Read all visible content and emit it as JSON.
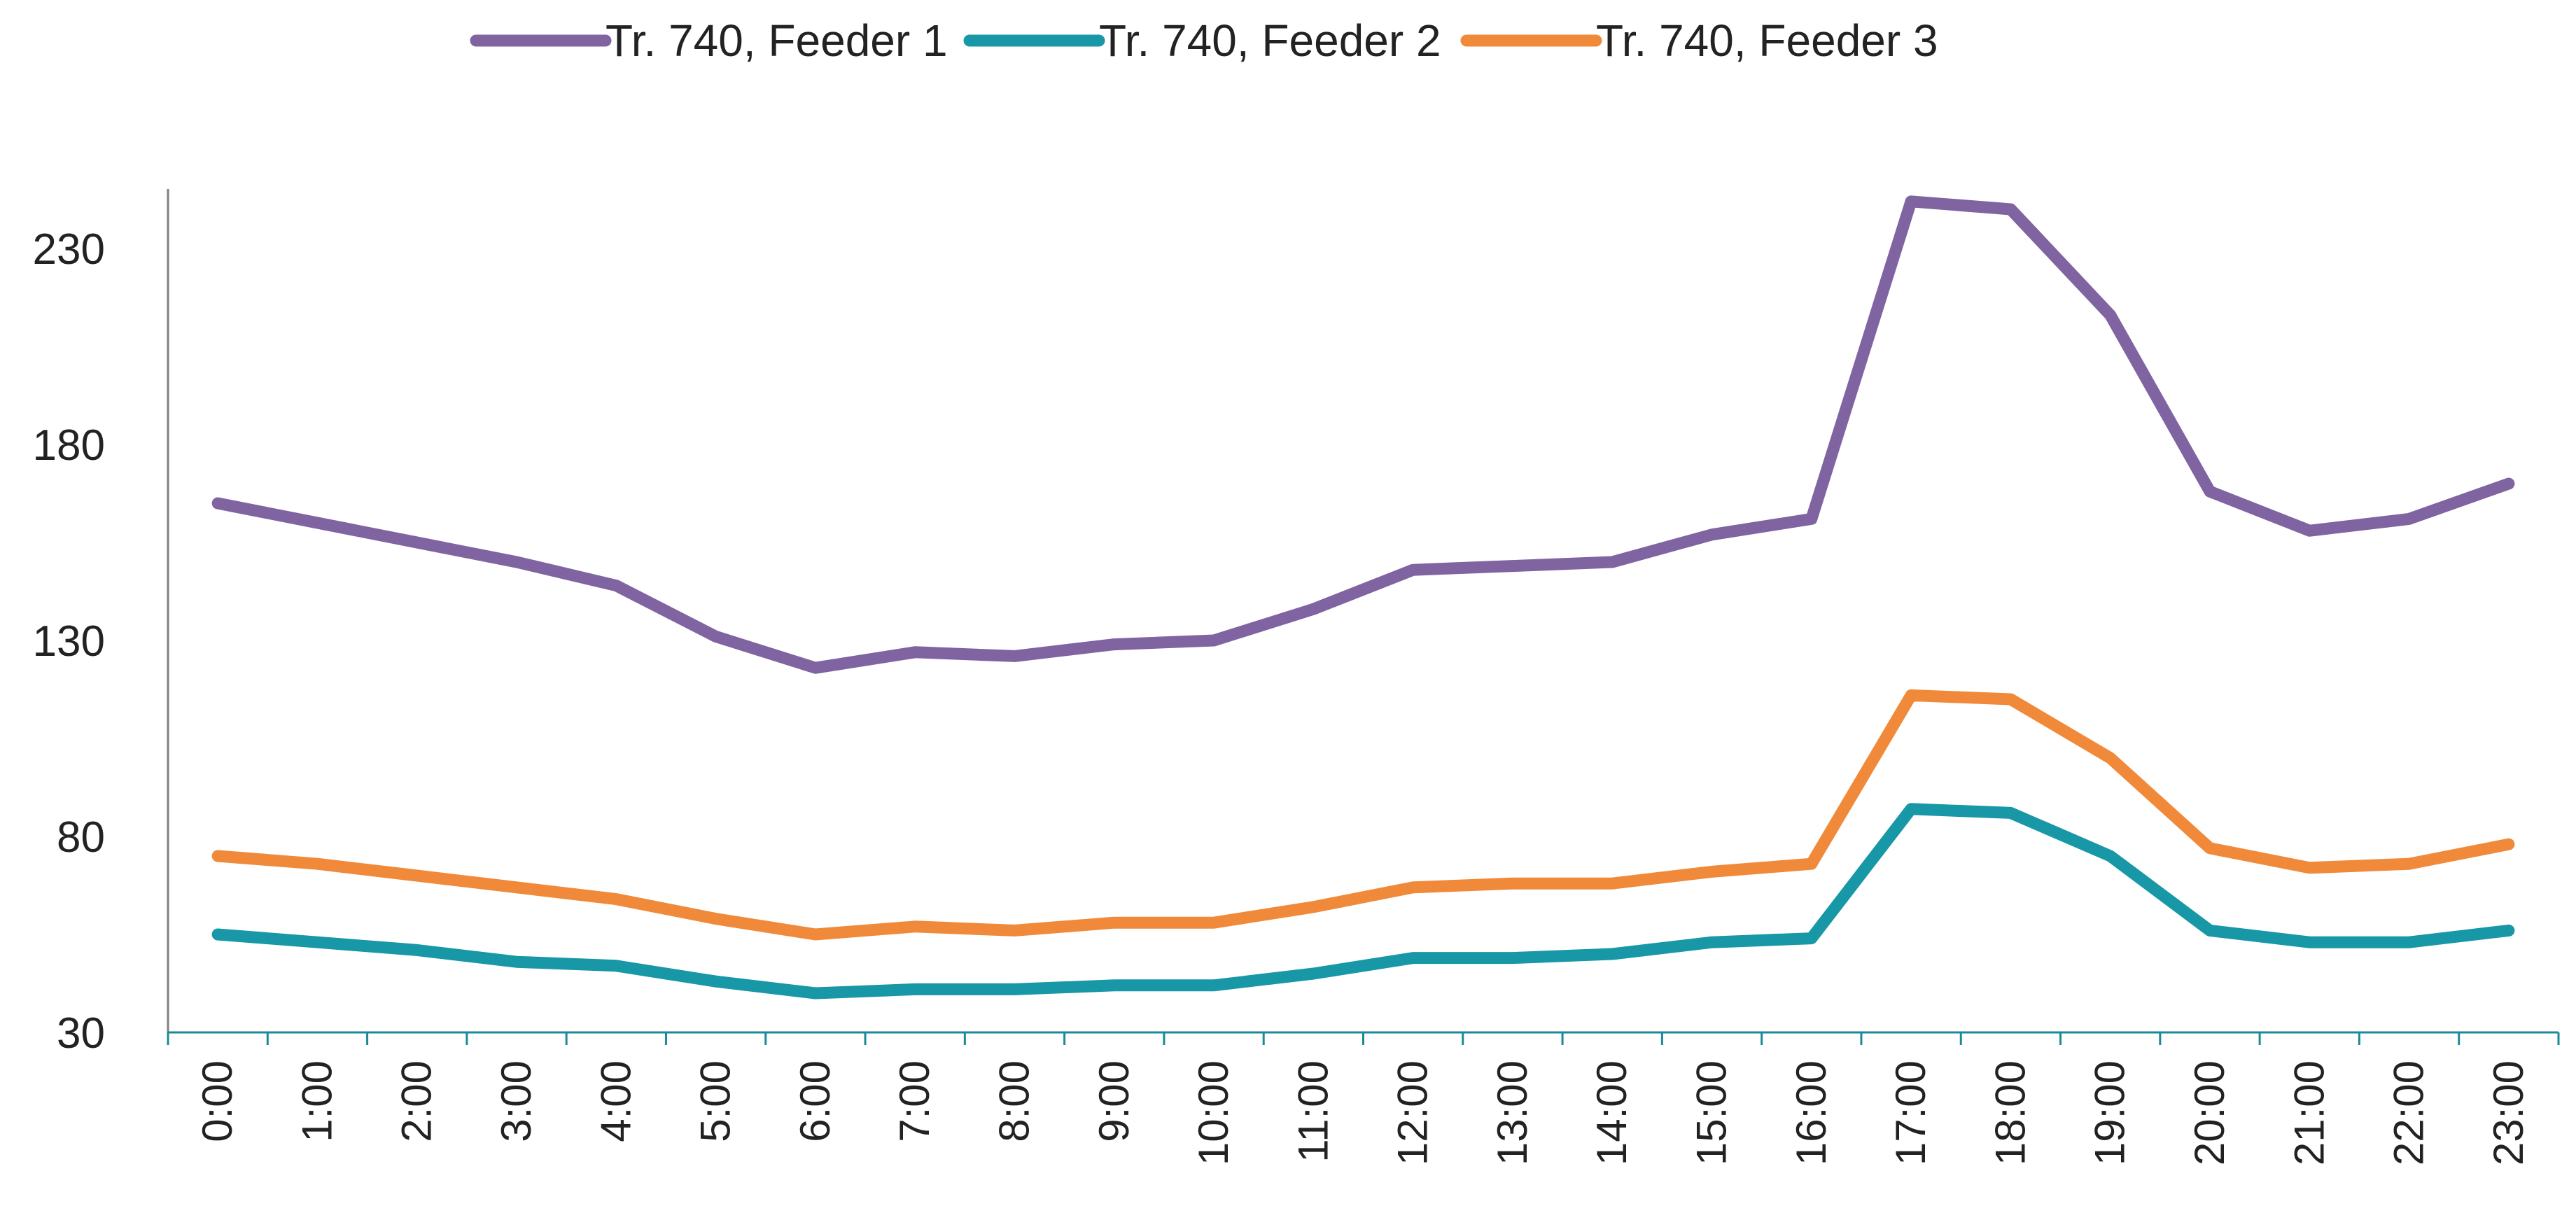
{
  "chart_data": {
    "type": "line",
    "title": "",
    "xlabel": "",
    "ylabel": "",
    "categories": [
      "0:00",
      "1:00",
      "2:00",
      "3:00",
      "4:00",
      "5:00",
      "6:00",
      "7:00",
      "8:00",
      "9:00",
      "10:00",
      "11:00",
      "12:00",
      "13:00",
      "14:00",
      "15:00",
      "16:00",
      "17:00",
      "18:00",
      "19:00",
      "20:00",
      "21:00",
      "22:00",
      "23:00"
    ],
    "ylim": [
      30,
      245
    ],
    "yticks": [
      30,
      80,
      130,
      180,
      230
    ],
    "grid": false,
    "legend_position": "top",
    "series": [
      {
        "name": "Tr. 740, Feeder 1",
        "color": "#8064A2",
        "values": [
          165,
          160,
          155,
          150,
          144,
          131,
          123,
          127,
          126,
          129,
          130,
          138,
          148,
          149,
          150,
          157,
          161,
          242,
          240,
          213,
          168,
          158,
          161,
          170
        ]
      },
      {
        "name": "Tr. 740, Feeder 2",
        "color": "#1897A6",
        "values": [
          55,
          53,
          51,
          48,
          47,
          43,
          40,
          41,
          41,
          42,
          42,
          45,
          49,
          49,
          50,
          53,
          54,
          87,
          86,
          75,
          56,
          53,
          53,
          56
        ]
      },
      {
        "name": "Tr. 740, Feeder 3",
        "color": "#F08A3A",
        "values": [
          75,
          73,
          70,
          67,
          64,
          59,
          55,
          57,
          56,
          58,
          58,
          62,
          67,
          68,
          68,
          71,
          73,
          116,
          115,
          100,
          77,
          72,
          73,
          78
        ]
      }
    ]
  }
}
